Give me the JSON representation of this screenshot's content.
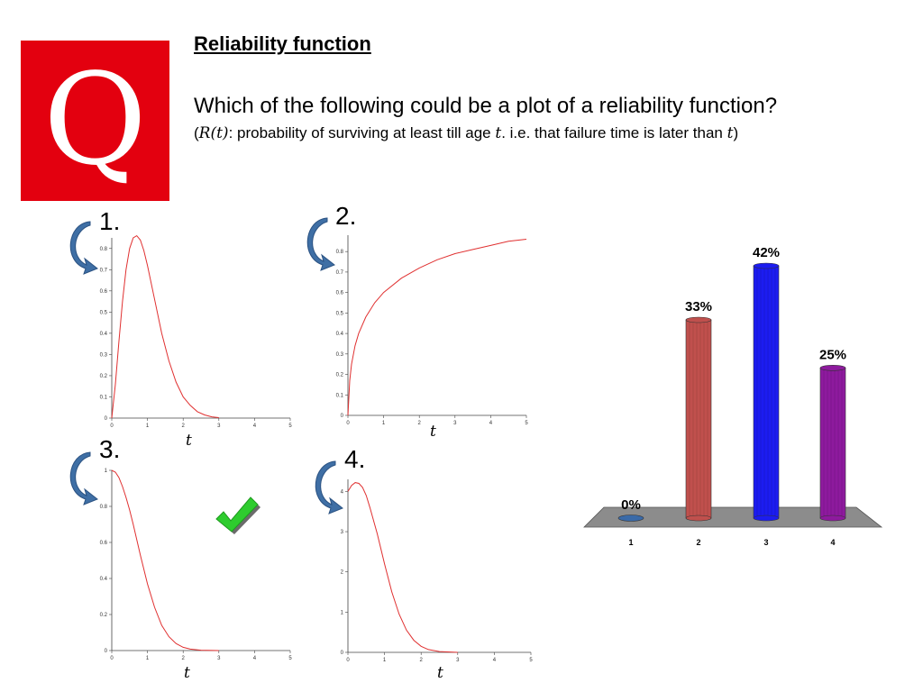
{
  "logo": {
    "letter": "Q"
  },
  "header": {
    "title": "Reliability function",
    "question": "Which of the following could be a plot of a reliability function?",
    "note_open": "(",
    "note_var": "R(t)",
    "note_mid": ": probability of surviving at least till age ",
    "note_t1": "t",
    "note_mid2": ". i.e. that failure time is later than ",
    "note_t2": "t",
    "note_close": ")"
  },
  "options": [
    {
      "number": "1.",
      "xlabel": "t"
    },
    {
      "number": "2.",
      "xlabel": "t"
    },
    {
      "number": "3.",
      "xlabel": "t"
    },
    {
      "number": "4.",
      "xlabel": ""
    }
  ],
  "option4_xlabel": "t",
  "colors": {
    "curve": "#e03030",
    "arrow": "#3f6fa5",
    "check": "#2ecc2e",
    "bars": [
      "#3a6aa8",
      "#c0504d",
      "#1c1cf0",
      "#8e1a9e"
    ],
    "floor": "#8c8c8c"
  },
  "chart_data": [
    {
      "type": "line",
      "panel": "1",
      "x_ticks": [
        "0",
        "1",
        "2",
        "3",
        "4",
        "5"
      ],
      "y_ticks": [
        "0",
        "0.1",
        "0.2",
        "0.3",
        "0.4",
        "0.5",
        "0.6",
        "0.7",
        "0.8"
      ],
      "xlim": [
        0,
        5
      ],
      "ylim": [
        0,
        0.85
      ],
      "x": [
        0,
        0.1,
        0.2,
        0.3,
        0.4,
        0.5,
        0.6,
        0.7,
        0.8,
        0.9,
        1.0,
        1.2,
        1.4,
        1.6,
        1.8,
        2.0,
        2.2,
        2.4,
        2.6,
        2.8,
        3.0
      ],
      "y": [
        0,
        0.16,
        0.36,
        0.55,
        0.7,
        0.8,
        0.85,
        0.86,
        0.84,
        0.79,
        0.72,
        0.56,
        0.4,
        0.27,
        0.17,
        0.1,
        0.06,
        0.03,
        0.015,
        0.006,
        0.002
      ]
    },
    {
      "type": "line",
      "panel": "2",
      "x_ticks": [
        "0",
        "1",
        "2",
        "3",
        "4",
        "5"
      ],
      "y_ticks": [
        "0",
        "0.1",
        "0.2",
        "0.3",
        "0.4",
        "0.5",
        "0.6",
        "0.7",
        "0.8"
      ],
      "xlim": [
        0,
        5
      ],
      "ylim": [
        0,
        0.88
      ],
      "x": [
        0,
        0.05,
        0.1,
        0.2,
        0.3,
        0.5,
        0.75,
        1.0,
        1.5,
        2.0,
        2.5,
        3.0,
        3.5,
        4.0,
        4.5,
        5.0
      ],
      "y": [
        0,
        0.17,
        0.25,
        0.34,
        0.4,
        0.48,
        0.55,
        0.6,
        0.67,
        0.72,
        0.76,
        0.79,
        0.81,
        0.83,
        0.85,
        0.86
      ]
    },
    {
      "type": "line",
      "panel": "3",
      "x_ticks": [
        "0",
        "1",
        "2",
        "3",
        "4",
        "5"
      ],
      "y_ticks": [
        "0",
        "0.2",
        "0.4",
        "0.6",
        "0.8",
        "1"
      ],
      "xlim": [
        0,
        5
      ],
      "ylim": [
        0,
        1
      ],
      "x": [
        0,
        0.1,
        0.2,
        0.3,
        0.4,
        0.5,
        0.6,
        0.8,
        1.0,
        1.2,
        1.4,
        1.6,
        1.8,
        2.0,
        2.2,
        2.5,
        3.0
      ],
      "y": [
        1,
        0.99,
        0.96,
        0.91,
        0.85,
        0.78,
        0.7,
        0.53,
        0.37,
        0.24,
        0.14,
        0.077,
        0.039,
        0.018,
        0.008,
        0.002,
        0
      ]
    },
    {
      "type": "line",
      "panel": "4",
      "x_ticks": [
        "0",
        "1",
        "2",
        "3",
        "4",
        "5"
      ],
      "y_ticks": [
        "0",
        "1",
        "2",
        "3",
        "4"
      ],
      "xlim": [
        0,
        5
      ],
      "ylim": [
        0,
        4.3
      ],
      "x": [
        0,
        0.1,
        0.2,
        0.3,
        0.4,
        0.5,
        0.6,
        0.8,
        1.0,
        1.2,
        1.4,
        1.6,
        1.8,
        2.0,
        2.2,
        2.5,
        3.0
      ],
      "y": [
        4.0,
        4.15,
        4.22,
        4.2,
        4.1,
        3.9,
        3.6,
        2.95,
        2.2,
        1.5,
        0.95,
        0.55,
        0.3,
        0.15,
        0.07,
        0.02,
        0
      ]
    },
    {
      "type": "bar",
      "panel": "poll",
      "categories": [
        "1",
        "2",
        "3",
        "4"
      ],
      "values": [
        0,
        33,
        42,
        25
      ],
      "data_labels": [
        "0%",
        "33%",
        "42%",
        "25%"
      ],
      "ylim": [
        0,
        42
      ]
    }
  ]
}
